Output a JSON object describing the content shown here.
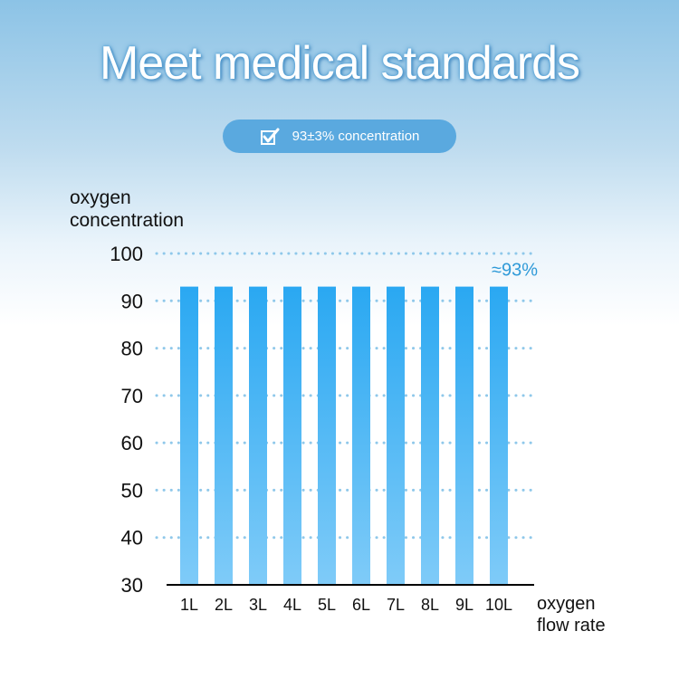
{
  "header": {
    "title": "Meet medical standards",
    "badge_text": "93±3% concentration",
    "badge_icon": "checkbox-check-icon"
  },
  "colors": {
    "bar_top": "#2aa8f2",
    "bar_bottom": "#7fcbf8",
    "grid": "#8fc8ea",
    "accent_text": "#2f9ad8"
  },
  "chart_data": {
    "type": "bar",
    "title": "",
    "ylabel": "oxygen concentration",
    "ylabel_lines": [
      "oxygen",
      "concentration"
    ],
    "xlabel": "oxygen flow rate",
    "xlabel_lines": [
      "oxygen",
      "flow rate"
    ],
    "categories": [
      "1L",
      "2L",
      "3L",
      "4L",
      "5L",
      "6L",
      "7L",
      "8L",
      "9L",
      "10L"
    ],
    "values": [
      93,
      93,
      93,
      93,
      93,
      93,
      93,
      93,
      93,
      93
    ],
    "ylim": [
      30,
      100
    ],
    "yticks": [
      30,
      40,
      50,
      60,
      70,
      80,
      90,
      100
    ],
    "grid": true,
    "annotation": "≈93%"
  }
}
